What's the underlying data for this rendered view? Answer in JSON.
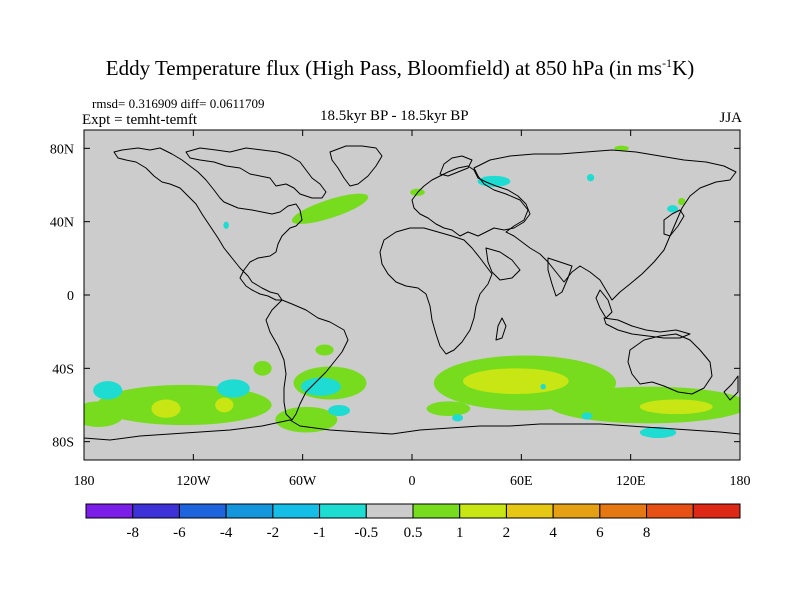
{
  "figure": {
    "title_main": "Eddy Temperature flux (High Pass, Bloomfield) at 850 hPa (in ms",
    "title_sup": "-1",
    "title_end": "K)",
    "stats": "rmsd= 0.316909 diff= 0.0611709",
    "expt": "Expt = temht-temft",
    "subtitle": "18.5kyr BP - 18.5kyr BP",
    "season": "JJA"
  },
  "colors": {
    "background": "#cccccc",
    "coast": "#000000",
    "levels": [
      "#7a1ee8",
      "#3c32d8",
      "#1e64dc",
      "#1496dc",
      "#14bee6",
      "#1edcd2",
      "#cccccc",
      "#78dc1e",
      "#c8e614",
      "#e6c814",
      "#e6a014",
      "#e67814",
      "#e65014",
      "#dc2814"
    ]
  },
  "chart_data": {
    "type": "heatmap",
    "title": "Eddy Temperature flux (High Pass, Bloomfield) at 850 hPa (in ms-1K)",
    "xlabel": "",
    "ylabel": "",
    "xlim": [
      -180,
      180
    ],
    "ylim": [
      -90,
      90
    ],
    "x_ticks": [
      {
        "value": -180,
        "label": "180"
      },
      {
        "value": -120,
        "label": "120W"
      },
      {
        "value": -60,
        "label": "60W"
      },
      {
        "value": 0,
        "label": "0"
      },
      {
        "value": 60,
        "label": "60E"
      },
      {
        "value": 120,
        "label": "120E"
      },
      {
        "value": 180,
        "label": "180"
      }
    ],
    "y_ticks": [
      {
        "value": 80,
        "label": "80N"
      },
      {
        "value": 40,
        "label": "40N"
      },
      {
        "value": 0,
        "label": "0"
      },
      {
        "value": -40,
        "label": "40S"
      },
      {
        "value": -80,
        "label": "80S"
      }
    ],
    "colorbar": {
      "levels": [
        "-8",
        "-6",
        "-4",
        "-2",
        "-1",
        "-0.5",
        "0.5",
        "1",
        "2",
        "4",
        "6",
        "8"
      ]
    },
    "regions": [
      {
        "name": "north-atlantic-positive",
        "level": 1,
        "lon": -45,
        "lat": 47,
        "rlon": 22,
        "rlat": 5,
        "rot": -18
      },
      {
        "name": "north-atlantic-core",
        "level": 1,
        "lon": -50,
        "lat": 46,
        "rlon": 6,
        "rlat": 3,
        "rot": -18
      },
      {
        "name": "north-sea-positive",
        "level": 1,
        "lon": 3,
        "lat": 56,
        "rlon": 4,
        "rlat": 2,
        "rot": 0
      },
      {
        "name": "arctic-positive",
        "level": 1,
        "lon": 115,
        "lat": 80,
        "rlon": 4,
        "rlat": 1.5,
        "rot": 0
      },
      {
        "name": "kamchatka-positive",
        "level": 1,
        "lon": 148,
        "lat": 51,
        "rlon": 2,
        "rlat": 2,
        "rot": 0
      },
      {
        "name": "north-atlantic-negative",
        "level": -1,
        "lon": 45,
        "lat": 62,
        "rlon": 9,
        "rlat": 3,
        "rot": 0
      },
      {
        "name": "siberia-negative",
        "level": -1,
        "lon": 98,
        "lat": 64,
        "rlon": 2,
        "rlat": 2,
        "rot": 0
      },
      {
        "name": "okhotsk-negative",
        "level": -1,
        "lon": 143,
        "lat": 47,
        "rlon": 3,
        "rlat": 2,
        "rot": 0
      },
      {
        "name": "pacific-north-negative",
        "level": -1,
        "lon": -102,
        "lat": 38,
        "rlon": 1.5,
        "rlat": 2,
        "rot": 0
      },
      {
        "name": "southern-pacific-band",
        "level": 1,
        "lon": -125,
        "lat": -60,
        "rlon": 48,
        "rlat": 11,
        "rot": 0
      },
      {
        "name": "southern-pacific-west",
        "level": 1,
        "lon": -172,
        "lat": -65,
        "rlon": 14,
        "rlat": 7,
        "rot": 0
      },
      {
        "name": "southern-pacific-core",
        "level": 2,
        "lon": -135,
        "lat": -62,
        "rlon": 8,
        "rlat": 5,
        "rot": 0
      },
      {
        "name": "southern-pacific-core2",
        "level": 2,
        "lon": -103,
        "lat": -60,
        "rlon": 5,
        "rlat": 4,
        "rot": 0
      },
      {
        "name": "chile-positive",
        "level": 1,
        "lon": -82,
        "lat": -40,
        "rlon": 5,
        "rlat": 4,
        "rot": 0
      },
      {
        "name": "argentina-positive",
        "level": 1,
        "lon": -48,
        "lat": -30,
        "rlon": 5,
        "rlat": 3,
        "rot": 0
      },
      {
        "name": "south-atlantic-band",
        "level": 1,
        "lon": -45,
        "lat": -48,
        "rlon": 20,
        "rlat": 9,
        "rot": 0
      },
      {
        "name": "drake-positive",
        "level": 1,
        "lon": -58,
        "lat": -68,
        "rlon": 17,
        "rlat": 7,
        "rot": 0
      },
      {
        "name": "indian-ocean-band",
        "level": 1,
        "lon": 62,
        "lat": -48,
        "rlon": 50,
        "rlat": 15,
        "rot": 0
      },
      {
        "name": "indian-ocean-core",
        "level": 2,
        "lon": 57,
        "lat": -47,
        "rlon": 29,
        "rlat": 7,
        "rot": 0
      },
      {
        "name": "australia-south-band",
        "level": 1,
        "lon": 130,
        "lat": -60,
        "rlon": 55,
        "rlat": 10,
        "rot": 0
      },
      {
        "name": "australia-south-core",
        "level": 2,
        "lon": 145,
        "lat": -61,
        "rlon": 20,
        "rlat": 4,
        "rot": 0
      },
      {
        "name": "atlantic-south-east",
        "level": 1,
        "lon": 20,
        "lat": -62,
        "rlon": 12,
        "rlat": 4,
        "rot": 0
      },
      {
        "name": "pacific-southwest-negative",
        "level": -1,
        "lon": -167,
        "lat": -52,
        "rlon": 8,
        "rlat": 5,
        "rot": 0
      },
      {
        "name": "south-america-west-negative",
        "level": -1,
        "lon": -98,
        "lat": -51,
        "rlon": 9,
        "rlat": 5,
        "rot": 0
      },
      {
        "name": "south-atlantic-negative",
        "level": -1,
        "lon": -50,
        "lat": -50,
        "rlon": 11,
        "rlat": 5,
        "rot": 0
      },
      {
        "name": "south-atlantic-negative-b",
        "level": -1,
        "lon": -40,
        "lat": -63,
        "rlon": 6,
        "rlat": 3,
        "rot": 0
      },
      {
        "name": "weddell-negative",
        "level": -1,
        "lon": 25,
        "lat": -67,
        "rlon": 3,
        "rlat": 2,
        "rot": 0
      },
      {
        "name": "ross-negative",
        "level": -1,
        "lon": 135,
        "lat": -75,
        "rlon": 10,
        "rlat": 3,
        "rot": 0
      },
      {
        "name": "south-indian-negative",
        "level": -1,
        "lon": 96,
        "lat": -66,
        "rlon": 3,
        "rlat": 2,
        "rot": 0
      },
      {
        "name": "indian-small-negative",
        "level": -1,
        "lon": 72,
        "lat": -50,
        "rlon": 1.5,
        "rlat": 1.5,
        "rot": 0
      }
    ]
  }
}
